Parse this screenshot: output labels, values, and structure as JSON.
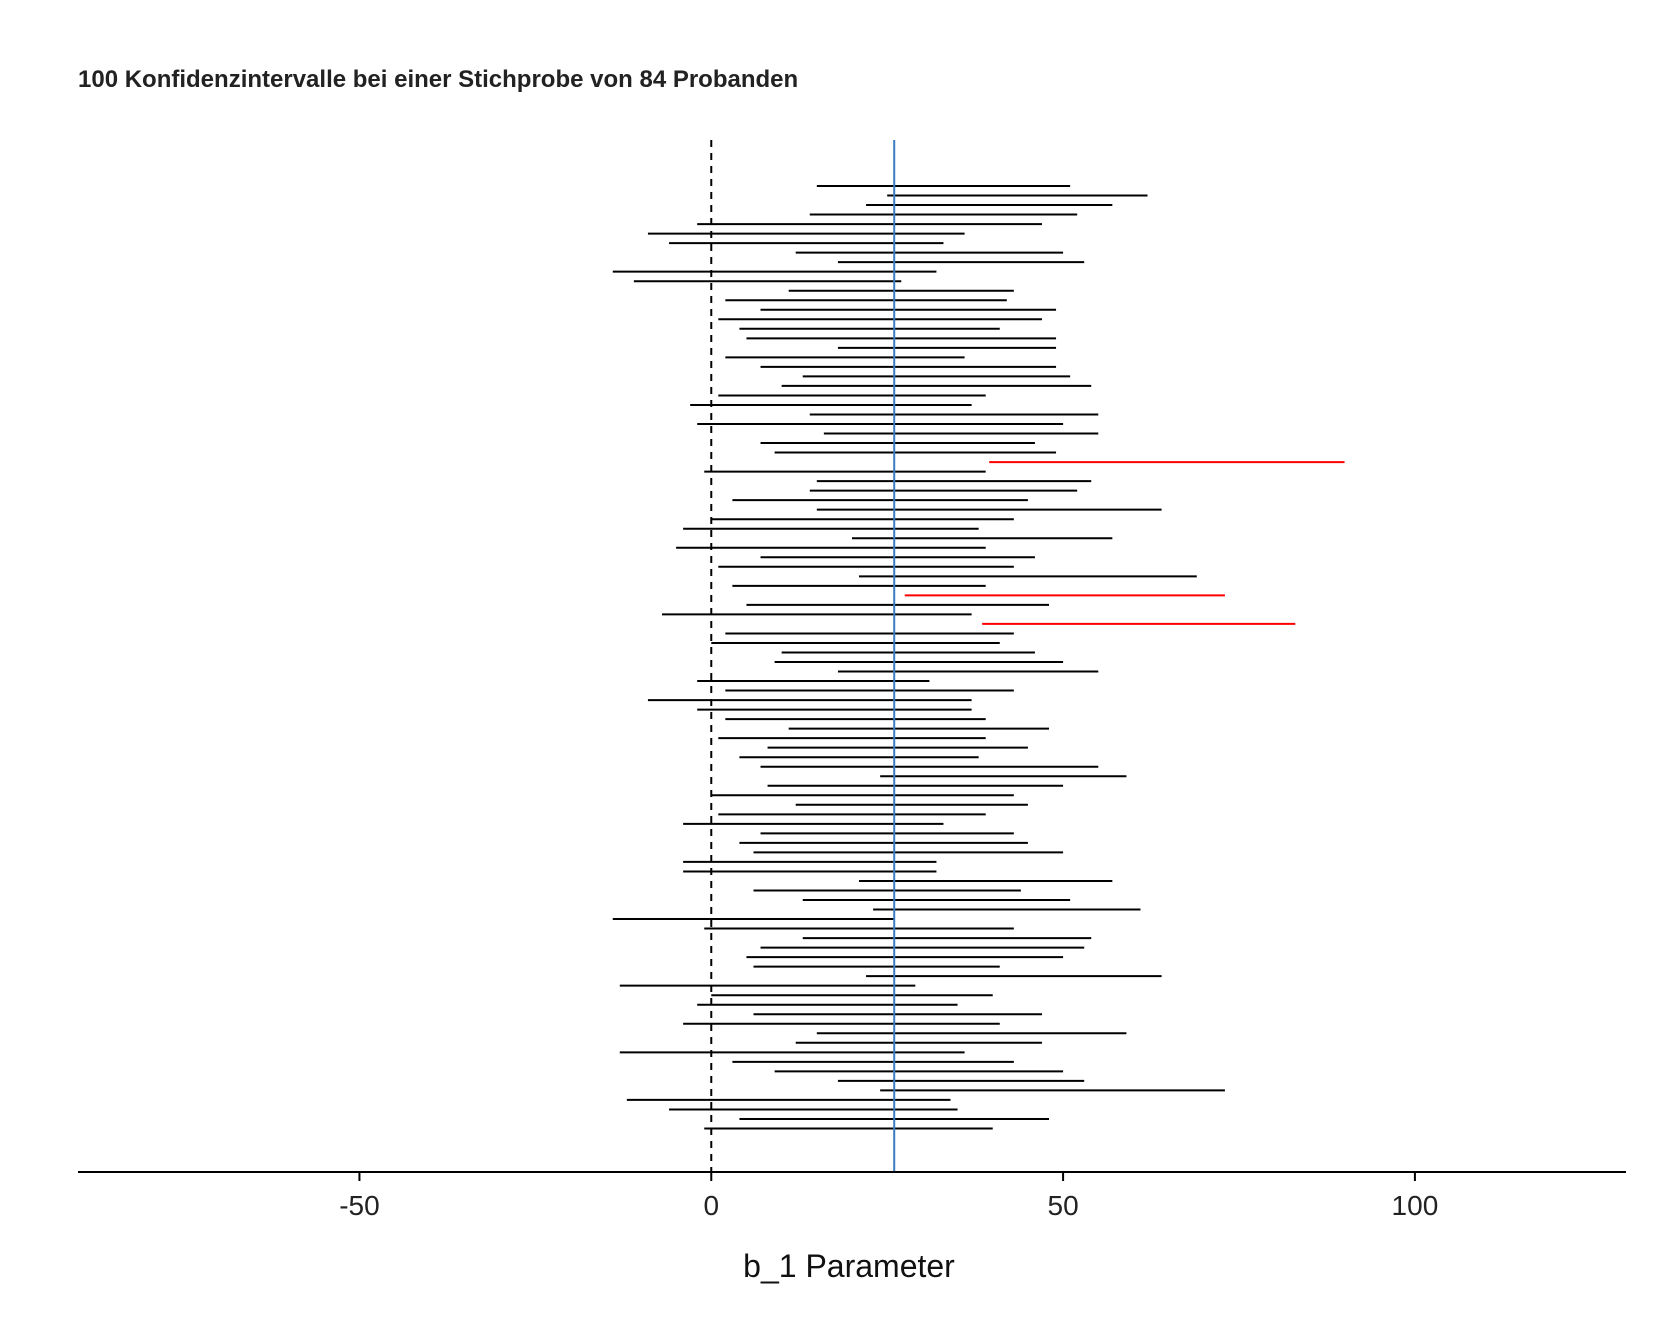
{
  "chart_data": {
    "type": "interval",
    "title": "100 Konfidenzintervalle bei einer Stichprobe von 84 Probanden",
    "xlabel": "b_1 Parameter",
    "ylabel": "",
    "xlim": [
      -90,
      130
    ],
    "xticks": [
      -50,
      0,
      50,
      100
    ],
    "xtick_labels": [
      "-50",
      "0",
      "50",
      "100"
    ],
    "grid": false,
    "legend": "none",
    "reference_lines": [
      {
        "name": "zero",
        "x": 0,
        "style": "dashed",
        "color": "#000000"
      },
      {
        "name": "true_value",
        "x": 26,
        "style": "solid",
        "color": "#3a7dbf"
      }
    ],
    "colors": {
      "contains_true": "#000000",
      "misses_true": "#ff0000"
    },
    "intervals": [
      {
        "lo": 15,
        "hi": 51,
        "misses": false
      },
      {
        "lo": 25,
        "hi": 62,
        "misses": false
      },
      {
        "lo": 22,
        "hi": 57,
        "misses": false
      },
      {
        "lo": 14,
        "hi": 52,
        "misses": false
      },
      {
        "lo": -2,
        "hi": 47,
        "misses": false
      },
      {
        "lo": -9,
        "hi": 36,
        "misses": false
      },
      {
        "lo": -6,
        "hi": 33,
        "misses": false
      },
      {
        "lo": 12,
        "hi": 50,
        "misses": false
      },
      {
        "lo": 18,
        "hi": 53,
        "misses": false
      },
      {
        "lo": -14,
        "hi": 32,
        "misses": false
      },
      {
        "lo": -11,
        "hi": 27,
        "misses": false
      },
      {
        "lo": 11,
        "hi": 43,
        "misses": false
      },
      {
        "lo": 2,
        "hi": 42,
        "misses": false
      },
      {
        "lo": 7,
        "hi": 49,
        "misses": false
      },
      {
        "lo": 1,
        "hi": 47,
        "misses": false
      },
      {
        "lo": 4,
        "hi": 41,
        "misses": false
      },
      {
        "lo": 5,
        "hi": 49,
        "misses": false
      },
      {
        "lo": 18,
        "hi": 49,
        "misses": false
      },
      {
        "lo": 2,
        "hi": 36,
        "misses": false
      },
      {
        "lo": 7,
        "hi": 49,
        "misses": false
      },
      {
        "lo": 13,
        "hi": 51,
        "misses": false
      },
      {
        "lo": 10,
        "hi": 54,
        "misses": false
      },
      {
        "lo": 1,
        "hi": 39,
        "misses": false
      },
      {
        "lo": -3,
        "hi": 37,
        "misses": false
      },
      {
        "lo": 14,
        "hi": 55,
        "misses": false
      },
      {
        "lo": -2,
        "hi": 50,
        "misses": false
      },
      {
        "lo": 16,
        "hi": 55,
        "misses": false
      },
      {
        "lo": 7,
        "hi": 46,
        "misses": false
      },
      {
        "lo": 9,
        "hi": 49,
        "misses": false
      },
      {
        "lo": 39.5,
        "hi": 90,
        "misses": true
      },
      {
        "lo": -1,
        "hi": 39,
        "misses": false
      },
      {
        "lo": 15,
        "hi": 54,
        "misses": false
      },
      {
        "lo": 14,
        "hi": 52,
        "misses": false
      },
      {
        "lo": 3,
        "hi": 45,
        "misses": false
      },
      {
        "lo": 15,
        "hi": 64,
        "misses": false
      },
      {
        "lo": 0,
        "hi": 43,
        "misses": false
      },
      {
        "lo": -4,
        "hi": 38,
        "misses": false
      },
      {
        "lo": 20,
        "hi": 57,
        "misses": false
      },
      {
        "lo": -5,
        "hi": 39,
        "misses": false
      },
      {
        "lo": 7,
        "hi": 46,
        "misses": false
      },
      {
        "lo": 1,
        "hi": 43,
        "misses": false
      },
      {
        "lo": 21,
        "hi": 69,
        "misses": false
      },
      {
        "lo": 3,
        "hi": 39,
        "misses": false
      },
      {
        "lo": 27.5,
        "hi": 73,
        "misses": true
      },
      {
        "lo": 5,
        "hi": 48,
        "misses": false
      },
      {
        "lo": -7,
        "hi": 37,
        "misses": false
      },
      {
        "lo": 38.5,
        "hi": 83,
        "misses": true
      },
      {
        "lo": 2,
        "hi": 43,
        "misses": false
      },
      {
        "lo": 0,
        "hi": 41,
        "misses": false
      },
      {
        "lo": 10,
        "hi": 46,
        "misses": false
      },
      {
        "lo": 9,
        "hi": 50,
        "misses": false
      },
      {
        "lo": 18,
        "hi": 55,
        "misses": false
      },
      {
        "lo": -2,
        "hi": 31,
        "misses": false
      },
      {
        "lo": 2,
        "hi": 43,
        "misses": false
      },
      {
        "lo": -9,
        "hi": 37,
        "misses": false
      },
      {
        "lo": -2,
        "hi": 37,
        "misses": false
      },
      {
        "lo": 2,
        "hi": 39,
        "misses": false
      },
      {
        "lo": 11,
        "hi": 48,
        "misses": false
      },
      {
        "lo": 1,
        "hi": 39,
        "misses": false
      },
      {
        "lo": 8,
        "hi": 45,
        "misses": false
      },
      {
        "lo": 4,
        "hi": 38,
        "misses": false
      },
      {
        "lo": 7,
        "hi": 55,
        "misses": false
      },
      {
        "lo": 24,
        "hi": 59,
        "misses": false
      },
      {
        "lo": 8,
        "hi": 50,
        "misses": false
      },
      {
        "lo": 0,
        "hi": 43,
        "misses": false
      },
      {
        "lo": 12,
        "hi": 45,
        "misses": false
      },
      {
        "lo": 1,
        "hi": 39,
        "misses": false
      },
      {
        "lo": -4,
        "hi": 33,
        "misses": false
      },
      {
        "lo": 7,
        "hi": 43,
        "misses": false
      },
      {
        "lo": 4,
        "hi": 45,
        "misses": false
      },
      {
        "lo": 6,
        "hi": 50,
        "misses": false
      },
      {
        "lo": -4,
        "hi": 32,
        "misses": false
      },
      {
        "lo": -4,
        "hi": 32,
        "misses": false
      },
      {
        "lo": 21,
        "hi": 57,
        "misses": false
      },
      {
        "lo": 6,
        "hi": 44,
        "misses": false
      },
      {
        "lo": 13,
        "hi": 51,
        "misses": false
      },
      {
        "lo": 23,
        "hi": 61,
        "misses": false
      },
      {
        "lo": -14,
        "hi": 26,
        "misses": false
      },
      {
        "lo": -1,
        "hi": 43,
        "misses": false
      },
      {
        "lo": 13,
        "hi": 54,
        "misses": false
      },
      {
        "lo": 7,
        "hi": 53,
        "misses": false
      },
      {
        "lo": 5,
        "hi": 50,
        "misses": false
      },
      {
        "lo": 6,
        "hi": 41,
        "misses": false
      },
      {
        "lo": 22,
        "hi": 64,
        "misses": false
      },
      {
        "lo": -13,
        "hi": 29,
        "misses": false
      },
      {
        "lo": 0,
        "hi": 40,
        "misses": false
      },
      {
        "lo": -2,
        "hi": 35,
        "misses": false
      },
      {
        "lo": 6,
        "hi": 47,
        "misses": false
      },
      {
        "lo": -4,
        "hi": 41,
        "misses": false
      },
      {
        "lo": 15,
        "hi": 59,
        "misses": false
      },
      {
        "lo": 12,
        "hi": 47,
        "misses": false
      },
      {
        "lo": -13,
        "hi": 36,
        "misses": false
      },
      {
        "lo": 3,
        "hi": 43,
        "misses": false
      },
      {
        "lo": 9,
        "hi": 50,
        "misses": false
      },
      {
        "lo": 18,
        "hi": 53,
        "misses": false
      },
      {
        "lo": 24,
        "hi": 73,
        "misses": false
      },
      {
        "lo": -12,
        "hi": 34,
        "misses": false
      },
      {
        "lo": -6,
        "hi": 35,
        "misses": false
      },
      {
        "lo": 4,
        "hi": 48,
        "misses": false
      },
      {
        "lo": -1,
        "hi": 40,
        "misses": false
      }
    ]
  }
}
